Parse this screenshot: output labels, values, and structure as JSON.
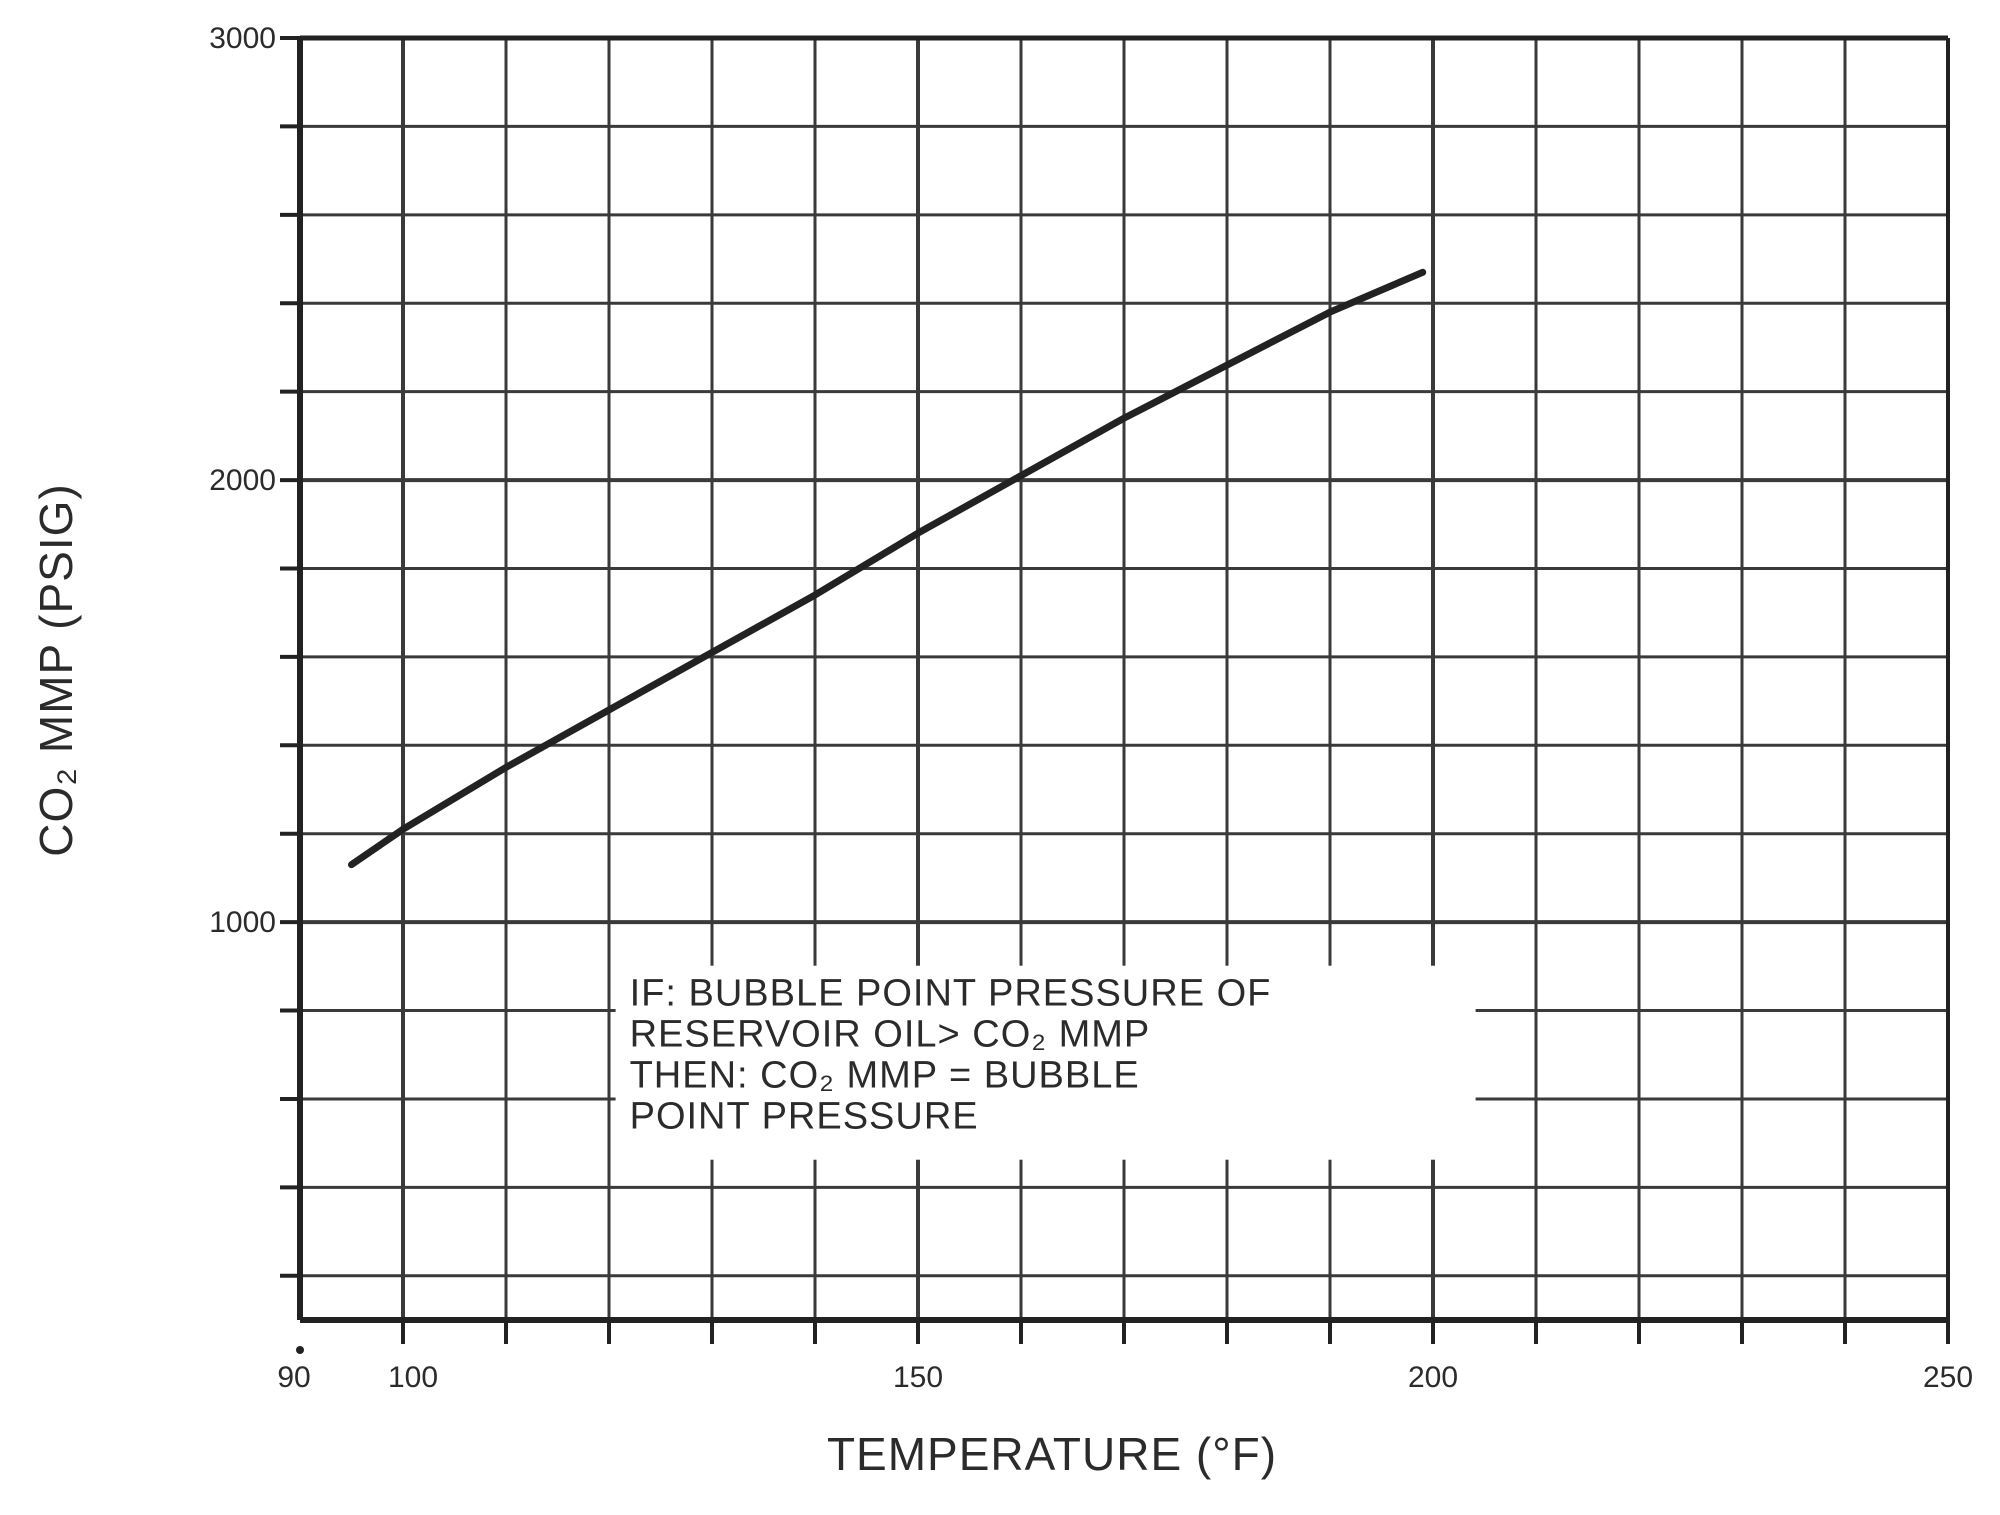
{
  "chart_data": {
    "type": "line",
    "title": "",
    "xlabel": "TEMPERATURE (°F)",
    "ylabel": "CO₂ MMP (PSIG)",
    "xlim": [
      90,
      250
    ],
    "ylim": [
      0,
      3000
    ],
    "x_ticks_labeled": [
      {
        "value": 90,
        "label": "90"
      },
      {
        "value": 100,
        "label": "100"
      },
      {
        "value": 150,
        "label": "150"
      },
      {
        "value": 200,
        "label": "200"
      },
      {
        "value": 250,
        "label": "250"
      }
    ],
    "y_ticks_labeled": [
      {
        "value": 1000,
        "label": "1000"
      },
      {
        "value": 2000,
        "label": "2000"
      },
      {
        "value": 3000,
        "label": "3000"
      }
    ],
    "x_grid_step": 10,
    "y_grid_step": 200,
    "grid": true,
    "series": [
      {
        "color": "#222222",
        "x": [
          95,
          100,
          110,
          120,
          130,
          140,
          150,
          160,
          170,
          180,
          190,
          199
        ],
        "y": [
          1130,
          1210,
          1350,
          1480,
          1610,
          1740,
          1880,
          2010,
          2140,
          2260,
          2380,
          2470
        ]
      }
    ],
    "annotations": [
      {
        "lines": [
          "IF: BUBBLE POINT PRESSURE OF",
          "RESERVOIR OIL> CO₂ MMP",
          "THEN: CO₂ MMP = BUBBLE",
          "POINT PRESSURE"
        ],
        "anchor": {
          "x": 122,
          "y": 820
        }
      }
    ]
  }
}
